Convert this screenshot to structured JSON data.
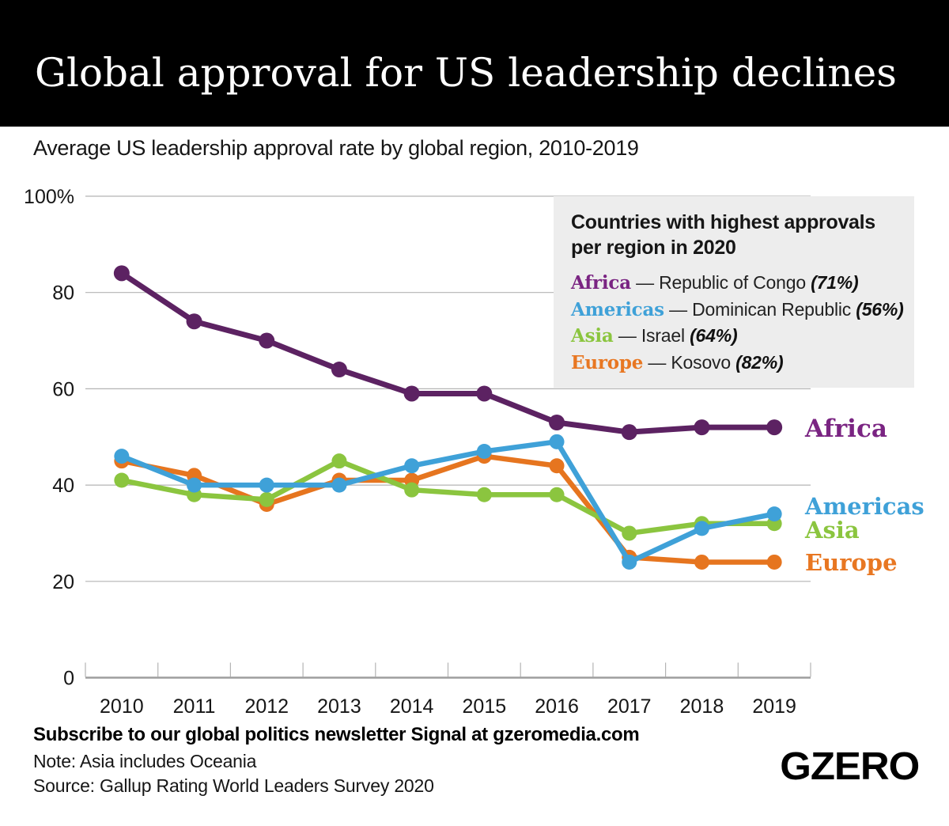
{
  "header": {
    "title": "Global approval for US leadership declines"
  },
  "subtitle": "Average US leadership approval rate by global region, 2010-2019",
  "chart_data": {
    "type": "line",
    "title": "Average US leadership approval rate by global region, 2010-2019",
    "x_labels": [
      "2010",
      "2011",
      "2012",
      "2013",
      "2014",
      "2015",
      "2016",
      "2017",
      "2018",
      "2019"
    ],
    "y_axis": {
      "range": [
        0,
        100
      ],
      "ticks": [
        {
          "value": 100,
          "label": "100%"
        },
        {
          "value": 80,
          "label": "80"
        },
        {
          "value": 60,
          "label": "60"
        },
        {
          "value": 40,
          "label": "40"
        },
        {
          "value": 20,
          "label": "20"
        },
        {
          "value": 0,
          "label": "0"
        }
      ]
    },
    "grid": true,
    "legend_position": "right-inline-labels",
    "series": [
      {
        "name": "Africa",
        "color": "#5c2262",
        "text_color": "#7a2482",
        "values": [
          84,
          74,
          70,
          64,
          59,
          59,
          53,
          51,
          52,
          52
        ]
      },
      {
        "name": "Americas",
        "color": "#3fa1d8",
        "text_color": "#3fa1d8",
        "values": [
          46,
          40,
          40,
          40,
          44,
          47,
          49,
          24,
          31,
          34
        ]
      },
      {
        "name": "Asia",
        "color": "#8bc53f",
        "text_color": "#8bc53f",
        "values": [
          41,
          38,
          37,
          45,
          39,
          38,
          38,
          30,
          32,
          32
        ]
      },
      {
        "name": "Europe",
        "color": "#e6751f",
        "text_color": "#e87722",
        "values": [
          45,
          42,
          36,
          41,
          41,
          46,
          44,
          25,
          24,
          24
        ]
      }
    ]
  },
  "callout": {
    "title": "Countries with highest approvals per region in 2020",
    "separator": "—",
    "items": [
      {
        "region": "Africa",
        "country": "Republic of Congo",
        "value": "(71%)"
      },
      {
        "region": "Americas",
        "country": "Dominican Republic",
        "value": "(56%)"
      },
      {
        "region": "Asia",
        "country": "Israel",
        "value": "(64%)"
      },
      {
        "region": "Europe",
        "country": "Kosovo",
        "value": "(82%)"
      }
    ]
  },
  "footer": {
    "subscribe": "Subscribe to our global politics newsletter Signal at gzeromedia.com",
    "note": "Note: Asia includes Oceania",
    "source": "Source: Gallup Rating World Leaders Survey 2020",
    "logo": "GZERO"
  }
}
